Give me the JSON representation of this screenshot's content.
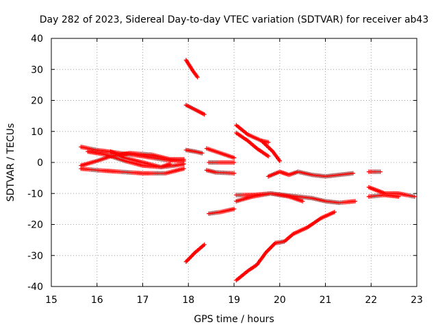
{
  "chart_data": {
    "type": "scatter",
    "title": "Day 282 of 2023, Sidereal Day-to-day VTEC variation (SDTVAR) for receiver ab43",
    "xlabel": "GPS time / hours",
    "ylabel": "SDTVAR / TECUs",
    "xlim": [
      15,
      23
    ],
    "ylim": [
      -40,
      40
    ],
    "xticks": [
      "15",
      "16",
      "17",
      "18",
      "19",
      "20",
      "21",
      "22",
      "23"
    ],
    "yticks": [
      "40",
      "30",
      "20",
      "10",
      "0",
      "-10",
      "-20",
      "-30",
      "-40"
    ],
    "grid": true,
    "marker": "+",
    "color": "#ff0000",
    "series": [
      {
        "points": [
          [
            15.65,
            5.0
          ],
          [
            16.0,
            4.0
          ],
          [
            16.5,
            3.0
          ],
          [
            17.0,
            2.0
          ],
          [
            17.5,
            0.8
          ],
          [
            17.9,
            0.5
          ]
        ]
      },
      {
        "points": [
          [
            15.65,
            -1.0
          ],
          [
            16.0,
            0.5
          ],
          [
            16.3,
            2.0
          ],
          [
            16.7,
            3.0
          ],
          [
            17.2,
            2.5
          ],
          [
            17.6,
            1.0
          ],
          [
            17.9,
            1.0
          ]
        ]
      },
      {
        "points": [
          [
            15.65,
            -2.0
          ],
          [
            16.0,
            -2.5
          ],
          [
            16.5,
            -3.0
          ],
          [
            17.0,
            -3.5
          ],
          [
            17.5,
            -3.5
          ],
          [
            17.9,
            -2.0
          ]
        ]
      },
      {
        "points": [
          [
            15.8,
            3.5
          ],
          [
            16.2,
            2.5
          ],
          [
            16.6,
            0.5
          ],
          [
            17.0,
            -1.0
          ],
          [
            17.4,
            -1.5
          ],
          [
            17.6,
            -0.5
          ]
        ]
      },
      {
        "points": [
          [
            16.3,
            3.5
          ],
          [
            16.6,
            1.5
          ],
          [
            17.0,
            0.0
          ],
          [
            17.4,
            -1.5
          ],
          [
            17.7,
            -1.0
          ],
          [
            17.9,
            -0.5
          ]
        ]
      },
      {
        "points": [
          [
            17.95,
            33.0
          ],
          [
            18.1,
            29.5
          ],
          [
            18.2,
            27.5
          ]
        ]
      },
      {
        "points": [
          [
            17.95,
            18.5
          ],
          [
            18.15,
            17.0
          ],
          [
            18.35,
            15.5
          ]
        ]
      },
      {
        "points": [
          [
            17.95,
            4.0
          ],
          [
            18.15,
            3.5
          ],
          [
            18.3,
            3.0
          ]
        ]
      },
      {
        "points": [
          [
            17.95,
            -32.0
          ],
          [
            18.15,
            -29.0
          ],
          [
            18.35,
            -26.5
          ]
        ]
      },
      {
        "points": [
          [
            18.4,
            4.5
          ],
          [
            18.7,
            3.0
          ],
          [
            19.0,
            1.5
          ]
        ]
      },
      {
        "points": [
          [
            18.45,
            0.0
          ],
          [
            18.7,
            0.0
          ],
          [
            19.0,
            0.0
          ]
        ]
      },
      {
        "points": [
          [
            18.4,
            -2.5
          ],
          [
            18.6,
            -3.2
          ],
          [
            19.0,
            -3.5
          ]
        ]
      },
      {
        "points": [
          [
            18.45,
            -16.5
          ],
          [
            18.7,
            -16.0
          ],
          [
            19.0,
            -15.0
          ]
        ]
      },
      {
        "points": [
          [
            19.05,
            12.0
          ],
          [
            19.3,
            9.0
          ],
          [
            19.6,
            7.0
          ],
          [
            19.75,
            6.5
          ]
        ]
      },
      {
        "points": [
          [
            19.05,
            9.5
          ],
          [
            19.3,
            7.0
          ],
          [
            19.5,
            4.5
          ],
          [
            19.75,
            2.0
          ]
        ]
      },
      {
        "points": [
          [
            19.6,
            7.0
          ],
          [
            19.85,
            3.5
          ],
          [
            20.0,
            0.5
          ]
        ]
      },
      {
        "points": [
          [
            19.75,
            -4.5
          ],
          [
            20.0,
            -3.0
          ],
          [
            20.2,
            -4.0
          ],
          [
            20.4,
            -3.0
          ],
          [
            20.7,
            -4.0
          ],
          [
            21.0,
            -4.5
          ],
          [
            21.3,
            -4.0
          ],
          [
            21.6,
            -3.5
          ]
        ]
      },
      {
        "points": [
          [
            19.05,
            -10.5
          ],
          [
            19.4,
            -10.5
          ],
          [
            19.8,
            -10.0
          ],
          [
            20.1,
            -10.5
          ],
          [
            20.4,
            -11.0
          ],
          [
            20.7,
            -11.5
          ],
          [
            21.0,
            -12.5
          ],
          [
            21.3,
            -13.0
          ],
          [
            21.65,
            -12.5
          ]
        ]
      },
      {
        "points": [
          [
            19.05,
            -12.5
          ],
          [
            19.4,
            -11.0
          ],
          [
            19.8,
            -10.0
          ],
          [
            20.2,
            -11.0
          ],
          [
            20.5,
            -12.5
          ]
        ]
      },
      {
        "points": [
          [
            19.05,
            -38.0
          ],
          [
            19.3,
            -35.0
          ],
          [
            19.5,
            -33.0
          ],
          [
            19.7,
            -29.0
          ],
          [
            19.9,
            -26.0
          ],
          [
            20.1,
            -25.5
          ],
          [
            20.3,
            -23.0
          ],
          [
            20.6,
            -21.0
          ],
          [
            20.9,
            -18.0
          ],
          [
            21.2,
            -16.0
          ]
        ]
      },
      {
        "points": [
          [
            21.95,
            -3.0
          ],
          [
            22.2,
            -3.0
          ]
        ]
      },
      {
        "points": [
          [
            21.95,
            -8.0
          ],
          [
            22.3,
            -10.0
          ],
          [
            22.6,
            -10.0
          ],
          [
            22.95,
            -11.0
          ]
        ]
      },
      {
        "points": [
          [
            21.95,
            -11.0
          ],
          [
            22.3,
            -10.5
          ],
          [
            22.6,
            -11.0
          ]
        ]
      }
    ]
  }
}
